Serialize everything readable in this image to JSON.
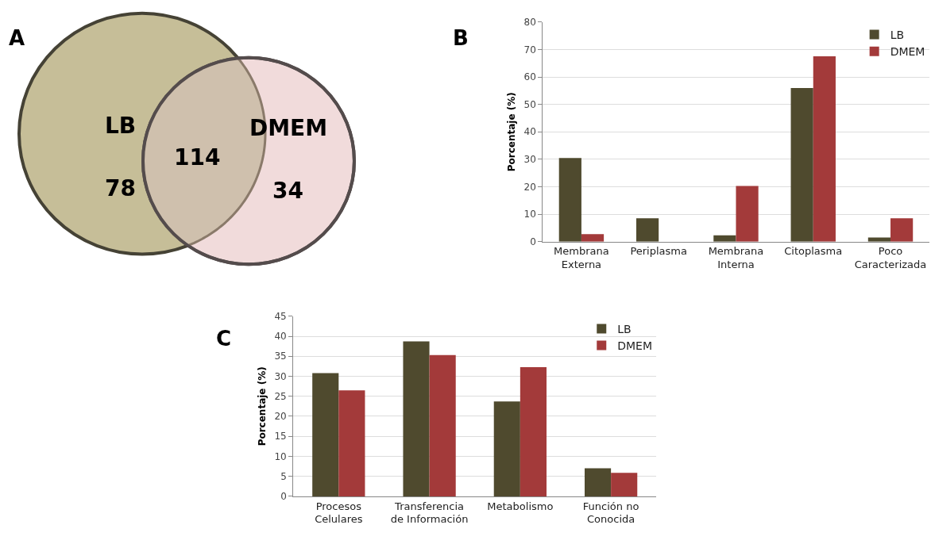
{
  "chart_data": [
    {
      "type": "other",
      "title": "A",
      "categories": [
        "LB",
        "DMEM"
      ],
      "values": [
        78,
        34
      ],
      "colors": [
        "#c6be98",
        "#f1dbdb"
      ],
      "data_labels": true,
      "annotations": [
        "114"
      ]
    },
    {
      "type": "bar",
      "title": "B",
      "ylabel": "Porcentaje (%)",
      "categories": [
        "Membrana\nExterna",
        "Periplasma",
        "Membrana\nInterna",
        "Citoplasma",
        "Poco\nCaracterizada"
      ],
      "series": [
        {
          "name": "LB",
          "color": "#4f4a2e",
          "values": [
            30.5,
            8.5,
            2.3,
            56,
            1.5
          ]
        },
        {
          "name": "DMEM",
          "color": "#a33a3a",
          "values": [
            2.7,
            0,
            20.3,
            67.5,
            8.5
          ]
        }
      ],
      "ylim": [
        0,
        80
      ],
      "yticks": [
        0,
        10,
        20,
        30,
        40,
        50,
        60,
        70,
        80
      ],
      "grid": "y",
      "legend": "top right"
    },
    {
      "type": "bar",
      "title": "C",
      "ylabel": "Porcentaje (%)",
      "categories": [
        "Procesos\nCelulares",
        "Transferencia\nde Información",
        "Metabolismo",
        "Función no\nConocida"
      ],
      "series": [
        {
          "name": "LB",
          "color": "#4f4a2e",
          "values": [
            30.8,
            38.7,
            23.7,
            7.0
          ]
        },
        {
          "name": "DMEM",
          "color": "#a33a3a",
          "values": [
            26.5,
            35.3,
            32.3,
            5.9
          ]
        }
      ],
      "ylim": [
        0,
        45
      ],
      "yticks": [
        0,
        5,
        10,
        15,
        20,
        25,
        30,
        35,
        40,
        45
      ],
      "grid": "y",
      "legend": "top right"
    }
  ]
}
